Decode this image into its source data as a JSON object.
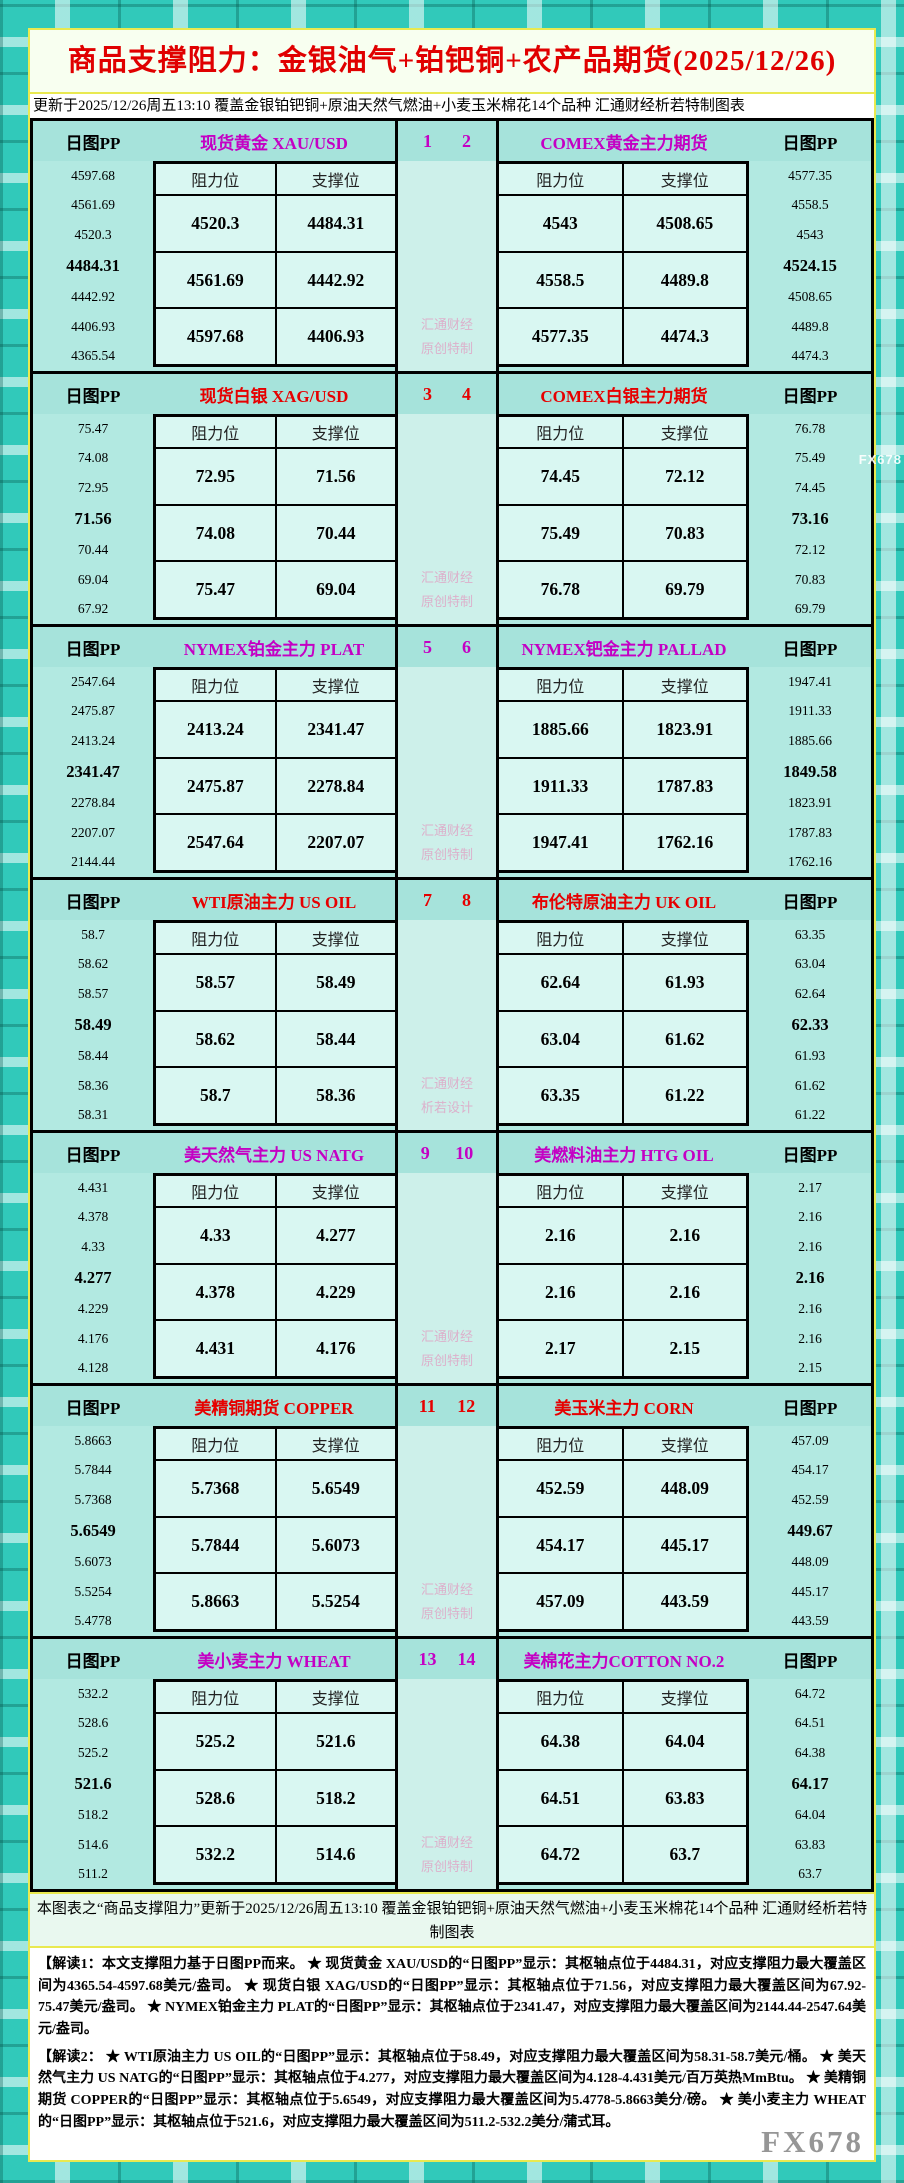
{
  "header": {
    "title": "商品支撑阻力：金银油气+铂钯铜+农产品期货(2025/12/26)",
    "subtitle": "更新于2025/12/26周五13:10 覆盖金银铂钯铜+原油天然气燃油+小麦玉米棉花14个品种 汇通财经析若特制图表"
  },
  "shared": {
    "pp_label": "日图PP",
    "res_label": "阻力位",
    "sup_label": "支撑位",
    "wm_line1": "汇通财经"
  },
  "colors": {
    "accent_magenta": "#c400c4",
    "accent_red": "#e60000",
    "title_red": "#e00000",
    "frame_teal": "#31c9ba",
    "panel_aqua": "#abe6de",
    "cell_light": "#d9f7f2",
    "border_yellow": "#e9e950",
    "watermark_pink": "#dfa6c6",
    "brand_gray": "#969696"
  },
  "chart_data": {
    "type": "table",
    "title": "商品支撑阻力：金银油气+铂钯铜+农产品期货(2025/12/26)",
    "columns": [
      "阻力位",
      "支撑位"
    ],
    "blocks": [
      {
        "pair": [
          "1",
          "2"
        ],
        "accent": "#c400c4",
        "wm2": "原创特制",
        "left": {
          "title": "现货黄金 XAU/USD",
          "pp": [
            "4597.68",
            "4561.69",
            "4520.3",
            "4484.31",
            "4442.92",
            "4406.93",
            "4365.54"
          ],
          "rows": [
            [
              "4520.3",
              "4484.31"
            ],
            [
              "4561.69",
              "4442.92"
            ],
            [
              "4597.68",
              "4406.93"
            ]
          ]
        },
        "right": {
          "title": "COMEX黄金主力期货",
          "pp": [
            "4577.35",
            "4558.5",
            "4543",
            "4524.15",
            "4508.65",
            "4489.8",
            "4474.3"
          ],
          "rows": [
            [
              "4543",
              "4508.65"
            ],
            [
              "4558.5",
              "4489.8"
            ],
            [
              "4577.35",
              "4474.3"
            ]
          ]
        }
      },
      {
        "pair": [
          "3",
          "4"
        ],
        "accent": "#e60000",
        "wm2": "原创特制",
        "left": {
          "title": "现货白银 XAG/USD",
          "pp": [
            "75.47",
            "74.08",
            "72.95",
            "71.56",
            "70.44",
            "69.04",
            "67.92"
          ],
          "rows": [
            [
              "72.95",
              "71.56"
            ],
            [
              "74.08",
              "70.44"
            ],
            [
              "75.47",
              "69.04"
            ]
          ]
        },
        "right": {
          "title": "COMEX白银主力期货",
          "pp": [
            "76.78",
            "75.49",
            "74.45",
            "73.16",
            "72.12",
            "70.83",
            "69.79"
          ],
          "rows": [
            [
              "74.45",
              "72.12"
            ],
            [
              "75.49",
              "70.83"
            ],
            [
              "76.78",
              "69.79"
            ]
          ]
        }
      },
      {
        "pair": [
          "5",
          "6"
        ],
        "accent": "#c400c4",
        "wm2": "原创特制",
        "left": {
          "title": "NYMEX铂金主力 PLAT",
          "pp": [
            "2547.64",
            "2475.87",
            "2413.24",
            "2341.47",
            "2278.84",
            "2207.07",
            "2144.44"
          ],
          "rows": [
            [
              "2413.24",
              "2341.47"
            ],
            [
              "2475.87",
              "2278.84"
            ],
            [
              "2547.64",
              "2207.07"
            ]
          ]
        },
        "right": {
          "title": "NYMEX钯金主力 PALLAD",
          "pp": [
            "1947.41",
            "1911.33",
            "1885.66",
            "1849.58",
            "1823.91",
            "1787.83",
            "1762.16"
          ],
          "rows": [
            [
              "1885.66",
              "1823.91"
            ],
            [
              "1911.33",
              "1787.83"
            ],
            [
              "1947.41",
              "1762.16"
            ]
          ]
        }
      },
      {
        "pair": [
          "7",
          "8"
        ],
        "accent": "#e60000",
        "wm2": "析若设计",
        "left": {
          "title": "WTI原油主力 US OIL",
          "pp": [
            "58.7",
            "58.62",
            "58.57",
            "58.49",
            "58.44",
            "58.36",
            "58.31"
          ],
          "rows": [
            [
              "58.57",
              "58.49"
            ],
            [
              "58.62",
              "58.44"
            ],
            [
              "58.7",
              "58.36"
            ]
          ]
        },
        "right": {
          "title": "布伦特原油主力 UK OIL",
          "pp": [
            "63.35",
            "63.04",
            "62.64",
            "62.33",
            "61.93",
            "61.62",
            "61.22"
          ],
          "rows": [
            [
              "62.64",
              "61.93"
            ],
            [
              "63.04",
              "61.62"
            ],
            [
              "63.35",
              "61.22"
            ]
          ]
        }
      },
      {
        "pair": [
          "9",
          "10"
        ],
        "accent": "#c400c4",
        "wm2": "原创特制",
        "left": {
          "title": "美天然气主力 US NATG",
          "pp": [
            "4.431",
            "4.378",
            "4.33",
            "4.277",
            "4.229",
            "4.176",
            "4.128"
          ],
          "rows": [
            [
              "4.33",
              "4.277"
            ],
            [
              "4.378",
              "4.229"
            ],
            [
              "4.431",
              "4.176"
            ]
          ]
        },
        "right": {
          "title": "美燃料油主力 HTG OIL",
          "pp": [
            "2.17",
            "2.16",
            "2.16",
            "2.16",
            "2.16",
            "2.16",
            "2.15"
          ],
          "rows": [
            [
              "2.16",
              "2.16"
            ],
            [
              "2.16",
              "2.16"
            ],
            [
              "2.17",
              "2.15"
            ]
          ]
        }
      },
      {
        "pair": [
          "11",
          "12"
        ],
        "accent": "#e60000",
        "wm2": "原创特制",
        "left": {
          "title": "美精铜期货 COPPER",
          "pp": [
            "5.8663",
            "5.7844",
            "5.7368",
            "5.6549",
            "5.6073",
            "5.5254",
            "5.4778"
          ],
          "rows": [
            [
              "5.7368",
              "5.6549"
            ],
            [
              "5.7844",
              "5.6073"
            ],
            [
              "5.8663",
              "5.5254"
            ]
          ]
        },
        "right": {
          "title": "美玉米主力 CORN",
          "pp": [
            "457.09",
            "454.17",
            "452.59",
            "449.67",
            "448.09",
            "445.17",
            "443.59"
          ],
          "rows": [
            [
              "452.59",
              "448.09"
            ],
            [
              "454.17",
              "445.17"
            ],
            [
              "457.09",
              "443.59"
            ]
          ]
        }
      },
      {
        "pair": [
          "13",
          "14"
        ],
        "accent": "#c400c4",
        "wm2": "原创特制",
        "left": {
          "title": "美小麦主力 WHEAT",
          "pp": [
            "532.2",
            "528.6",
            "525.2",
            "521.6",
            "518.2",
            "514.6",
            "511.2"
          ],
          "rows": [
            [
              "525.2",
              "521.6"
            ],
            [
              "528.6",
              "518.2"
            ],
            [
              "532.2",
              "514.6"
            ]
          ]
        },
        "right": {
          "title": "美棉花主力COTTON NO.2",
          "pp": [
            "64.72",
            "64.51",
            "64.38",
            "64.17",
            "64.04",
            "63.83",
            "63.7"
          ],
          "rows": [
            [
              "64.38",
              "64.04"
            ],
            [
              "64.51",
              "63.83"
            ],
            [
              "64.72",
              "63.7"
            ]
          ]
        }
      }
    ]
  },
  "footer_note": "本图表之“商品支撑阻力”更新于2025/12/26周五13:10 覆盖金银铂钯铜+原油天然气燃油+小麦玉米棉花14个品种 汇通财经析若特制图表",
  "notes": [
    "【解读1：本文支撑阻力基于日图PP而来。 ★ 现货黄金 XAU/USD的“日图PP”显示：其枢轴点位于4484.31，对应支撑阻力最大覆盖区间为4365.54-4597.68美元/盎司。 ★ 现货白银 XAG/USD的“日图PP”显示：其枢轴点位于71.56，对应支撑阻力最大覆盖区间为67.92-75.47美元/盎司。 ★ NYMEX铂金主力 PLAT的“日图PP”显示：其枢轴点位于2341.47，对应支撑阻力最大覆盖区间为2144.44-2547.64美元/盎司。",
    "【解读2： ★ WTI原油主力 US OIL的“日图PP”显示：其枢轴点位于58.49，对应支撑阻力最大覆盖区间为58.31-58.7美元/桶。 ★ 美天然气主力 US NATG的“日图PP”显示：其枢轴点位于4.277，对应支撑阻力最大覆盖区间为4.128-4.431美元/百万英热MmBtu。 ★ 美精铜期货 COPPER的“日图PP”显示：其枢轴点位于5.6549，对应支撑阻力最大覆盖区间为5.4778-5.8663美分/磅。 ★ 美小麦主力 WHEAT的“日图PP”显示：其枢轴点位于521.6，对应支撑阻力最大覆盖区间为511.2-532.2美分/蒲式耳。"
  ],
  "brand": "FX678"
}
